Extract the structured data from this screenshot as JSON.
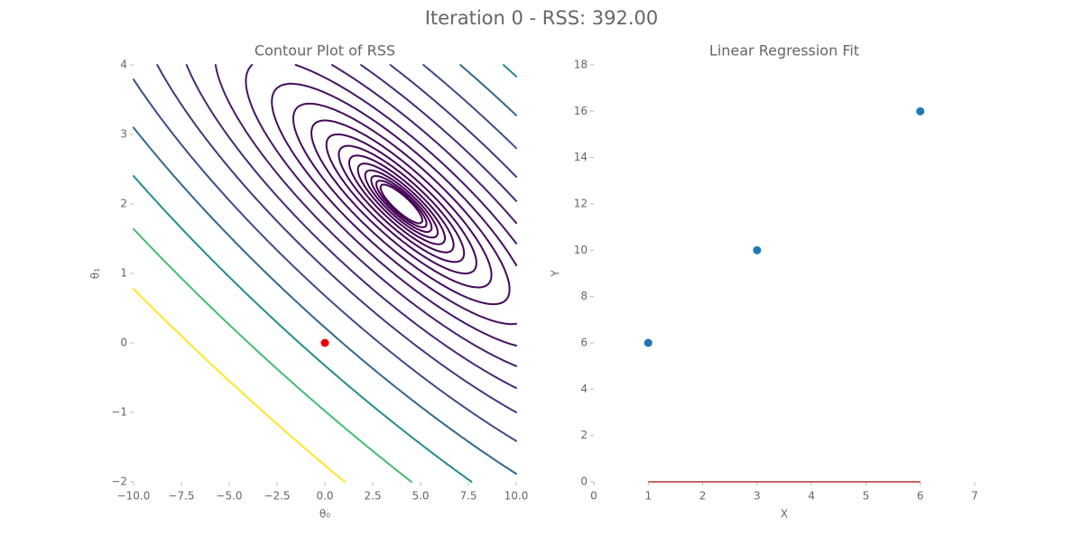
{
  "title": "Iteration 0 - RSS: 392.00",
  "chart_data": [
    {
      "type": "contour",
      "title": "Contour Plot of RSS",
      "xlabel": "θ₀",
      "ylabel": "θ₁",
      "levels": [
        1,
        1.44,
        2.07,
        2.98,
        4.28,
        6.16,
        8.86,
        12.7,
        18.3,
        26.4,
        37.9,
        54.6,
        78.5,
        113,
        162,
        234,
        336,
        483,
        695,
        1000
      ],
      "colormap": "viridis",
      "point": {
        "x": 0,
        "y": 0,
        "color": "#ee0000"
      },
      "xlim": [
        -10,
        10
      ],
      "xticks": [
        {
          "value": -10,
          "label": "−10.0"
        },
        {
          "value": -7.5,
          "label": "−7.5"
        },
        {
          "value": -5,
          "label": "−5.0"
        },
        {
          "value": -2.5,
          "label": "−2.5"
        },
        {
          "value": 0,
          "label": "0.0"
        },
        2.5,
        {
          "value": 5,
          "label": "5.0"
        },
        7.5,
        {
          "value": 10,
          "label": "10.0"
        }
      ],
      "ylim": [
        -2,
        4
      ],
      "yticks": [
        {
          "value": -2,
          "label": "−2"
        },
        {
          "value": -1,
          "label": "−1"
        },
        0,
        1,
        2,
        3,
        4
      ]
    },
    {
      "type": "scatter",
      "title": "Linear Regression Fit",
      "xlabel": "X",
      "ylabel": "Y",
      "x": [
        1,
        3,
        6
      ],
      "values": [
        6,
        10,
        16
      ],
      "color": "#1f77b4",
      "fit": {
        "x": [
          1,
          6
        ],
        "values": [
          0,
          0
        ],
        "color": "#b03030"
      },
      "xlim": [
        0,
        7
      ],
      "xticks": [
        0,
        1,
        2,
        3,
        4,
        5,
        6,
        7
      ],
      "ylim": [
        0,
        18
      ],
      "yticks": [
        0,
        2,
        4,
        6,
        8,
        10,
        12,
        14,
        16,
        18
      ]
    }
  ]
}
